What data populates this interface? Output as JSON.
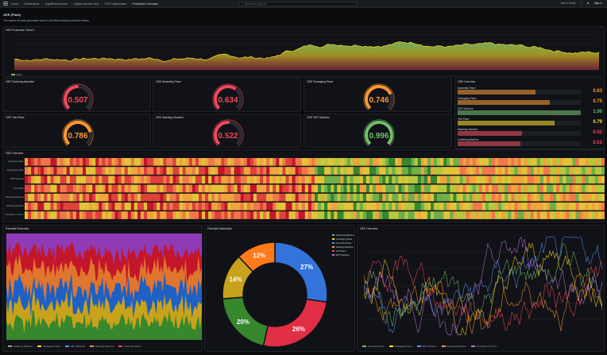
{
  "topbar": {
    "home": "Home",
    "crumbs": [
      "Dashboards",
      "DigitalFactory.com",
      "Digital machine view",
      "OEE Optimization",
      "Production Overview"
    ],
    "search_placeholder": "Search or jump to...",
    "help_label": "Ask & Share",
    "signin": "Sign in"
  },
  "header": {
    "title": "OEE (Plant)",
    "description": "The values are auto-generated and do not reflect actual production values."
  },
  "colors": {
    "green": "#73bf69",
    "yellow": "#fade2a",
    "orange": "#ff9830",
    "red": "#f2495c",
    "blue": "#5794f2",
    "purple": "#b877d9"
  },
  "trend_panel": {
    "title": "OEE Production Trend 1",
    "legend": "Mean"
  },
  "gauges": [
    {
      "title": "OEE Soldering Machine",
      "value": "0.507",
      "fraction": 0.507,
      "color": "#f2495c"
    },
    {
      "title": "OEE Assembly Place",
      "value": "0.634",
      "fraction": 0.634,
      "color": "#f2495c"
    },
    {
      "title": "OEE Packaging Place",
      "value": "0.746",
      "fraction": 0.746,
      "color": "#ff9830"
    },
    {
      "title": "OEE Test Place",
      "value": "0.786",
      "fraction": 0.786,
      "color": "#ff9830"
    },
    {
      "title": "OEE Washing Machine",
      "value": "0.522",
      "fraction": 0.522,
      "color": "#f2495c"
    },
    {
      "title": "OEE SMT Machine",
      "value": "0.996",
      "fraction": 0.996,
      "color": "#73bf69"
    }
  ],
  "overview_bars": {
    "title": "OEE Overview",
    "items": [
      {
        "label": "Assembly Place",
        "value": "0.63",
        "fraction": 0.63,
        "color": "#ff9830"
      },
      {
        "label": "Packaging Place",
        "value": "0.75",
        "fraction": 0.75,
        "color": "#ff9830"
      },
      {
        "label": "SMT Machine",
        "value": "1.00",
        "fraction": 1.0,
        "color": "#73bf69"
      },
      {
        "label": "Test Place",
        "value": "0.79",
        "fraction": 0.79,
        "color": "#fade2a"
      },
      {
        "label": "Washing Machine",
        "value": "0.52",
        "fraction": 0.52,
        "color": "#f2495c"
      },
      {
        "label": "Soldering Machine",
        "value": "0.51",
        "fraction": 0.51,
        "color": "#f2495c"
      }
    ]
  },
  "heatmap": {
    "title": "OEE Overview",
    "rows": [
      "Assembly Place",
      "Packaging Place",
      "SMT Machine",
      "Test Place",
      "Soldering Machine",
      "Washing Machine",
      "Production Trend 1"
    ]
  },
  "area_panel": {
    "title": "Potential Reduction",
    "legend": [
      "Soldering Machine",
      "Packaging Place",
      "SMT Machine",
      "Washing Machine",
      "Assembly Place"
    ]
  },
  "donut_panel": {
    "title": "Potential Distribution",
    "legend": [
      "Soldering Machine",
      "Packaging Place",
      "Assembly Place",
      "Washing Machine",
      "Test Place",
      "SMT Machine"
    ]
  },
  "line_panel": {
    "title": "OEE Overview",
    "legend": [
      "Assembly Place",
      "Packaging Place",
      "SMT Machine",
      "Soldering Machine",
      "Production Trend 1"
    ]
  },
  "chart_data": [
    {
      "type": "pie",
      "title": "Potential Distribution",
      "labels": [
        "",
        "",
        "",
        "",
        ""
      ],
      "values": [
        27,
        26,
        20,
        14,
        12
      ],
      "display": [
        "27%",
        "26%",
        "20%",
        "14%",
        "12%"
      ],
      "colors": [
        "#3274d9",
        "#e02f44",
        "#37872d",
        "#c8a21b",
        "#ff7a1a"
      ]
    }
  ]
}
